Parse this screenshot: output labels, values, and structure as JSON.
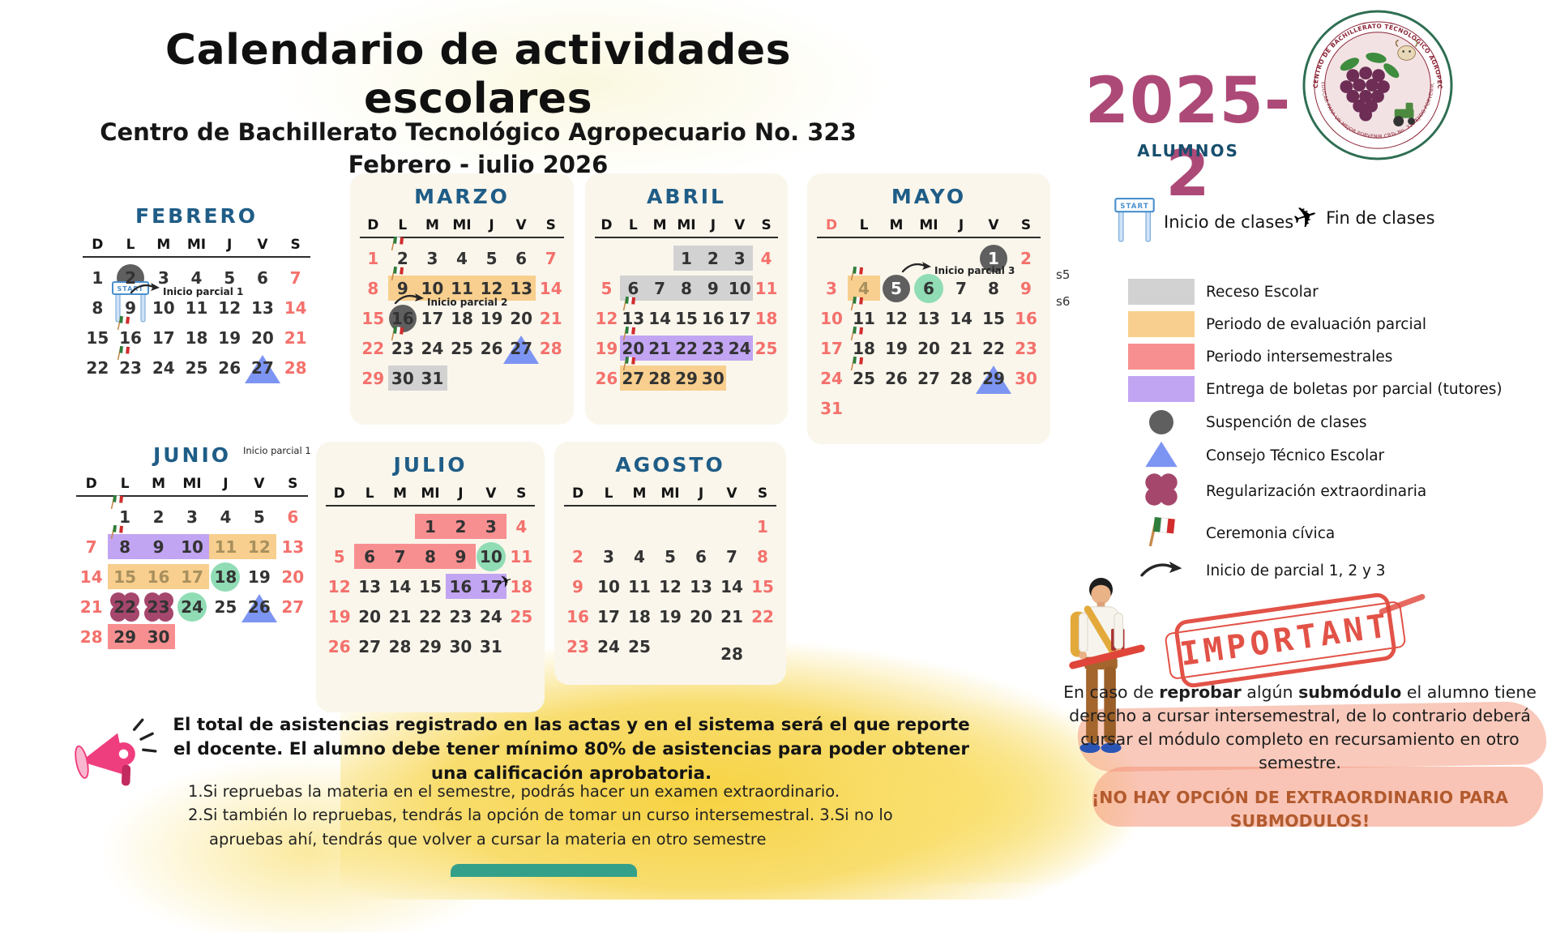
{
  "header": {
    "title": "Calendario de actividades escolares",
    "subtitle1": "Centro de Bachillerato Tecnológico Agropecuario No. 323",
    "subtitle2": "Febrero - julio 2026",
    "cycle": "2025-2",
    "audience": "ALUMNOS"
  },
  "emblem": {
    "ring_top": "CENTRO DE BACHILLERATO  TECNOLÓGICO AGROPECUARIO",
    "ring_bottom": "EDUCAR PARA UN MEJOR PORVENIR  CBTa  No. 323  EJIDO PORVENIR, B.C."
  },
  "week_labels": [
    "s5",
    "s6"
  ],
  "dow": [
    "D",
    "L",
    "M",
    "MI",
    "J",
    "V",
    "S"
  ],
  "colors": {
    "month_title": "#1f5d87",
    "weekend_red": "#f4716c",
    "receso_gray": "#d2d2d2",
    "evaluacion_orange": "#f8cf8e",
    "intersemestral_salmon": "#f78f90",
    "boletas_purple": "#c2a5f2",
    "suspension_gray": "#5f5f5f",
    "consejo_blue": "#7d95f2",
    "regularizacion_maroon": "#a5466d",
    "green_circle": "#90dcb5",
    "cycle_pink": "#ad4977",
    "stamp_red": "#e0453a",
    "warning_brown": "#b25a2e"
  },
  "months": [
    {
      "id": "feb",
      "name": "FEBRERO",
      "card": false,
      "weeks": [
        [
          {
            "d": 1
          },
          {
            "d": 2,
            "m": "susp"
          },
          {
            "d": 3
          },
          {
            "d": 4
          },
          {
            "d": 5
          },
          {
            "d": 6
          },
          {
            "d": 7,
            "r": 1
          }
        ],
        [
          {
            "d": 8
          },
          {
            "d": 9,
            "m": "start"
          },
          {
            "d": 10
          },
          {
            "d": 11
          },
          {
            "d": 12
          },
          {
            "d": 13
          },
          {
            "d": 14,
            "r": 1
          }
        ],
        [
          {
            "d": 15
          },
          {
            "d": 16,
            "f": 1
          },
          {
            "d": 17
          },
          {
            "d": 18
          },
          {
            "d": 19
          },
          {
            "d": 20
          },
          {
            "d": 21,
            "r": 1
          }
        ],
        [
          {
            "d": 22
          },
          {
            "d": 23,
            "f": 1
          },
          {
            "d": 24
          },
          {
            "d": 25
          },
          {
            "d": 26
          },
          {
            "d": 27,
            "m": "tri"
          },
          {
            "d": 28,
            "r": 1
          }
        ]
      ],
      "ann": [
        {
          "id": "feb-p1",
          "text": "Inicio parcial 1",
          "arrow": true
        }
      ]
    },
    {
      "id": "mar",
      "name": "MARZO",
      "card": true,
      "weeks": [
        [
          {
            "d": 1,
            "r": 1
          },
          {
            "d": 2,
            "f": 1
          },
          {
            "d": 3
          },
          {
            "d": 4
          },
          {
            "d": 5
          },
          {
            "d": 6
          },
          {
            "d": 7,
            "r": 1
          }
        ],
        [
          {
            "d": 8,
            "r": 1
          },
          {
            "d": 9,
            "f": 1,
            "h": "o"
          },
          {
            "d": 10,
            "h": "o"
          },
          {
            "d": 11,
            "h": "o"
          },
          {
            "d": 12,
            "h": "o"
          },
          {
            "d": 13,
            "h": "o"
          },
          {
            "d": 14,
            "r": 1
          }
        ],
        [
          {
            "d": 15,
            "r": 1
          },
          {
            "d": 16,
            "m": "susp"
          },
          {
            "d": 17
          },
          {
            "d": 18
          },
          {
            "d": 19
          },
          {
            "d": 20
          },
          {
            "d": 21,
            "r": 1
          }
        ],
        [
          {
            "d": 22,
            "r": 1
          },
          {
            "d": 23,
            "f": 1
          },
          {
            "d": 24
          },
          {
            "d": 25
          },
          {
            "d": 26
          },
          {
            "d": 27,
            "m": "tri"
          },
          {
            "d": 28,
            "r": 1
          }
        ],
        [
          {
            "d": 29,
            "r": 1
          },
          {
            "d": 30,
            "h": "g"
          },
          {
            "d": 31,
            "h": "g"
          },
          null,
          null,
          null,
          null
        ]
      ],
      "ann": [
        {
          "id": "mar-p2",
          "text": "Inicio parcial 2",
          "arrow": true
        }
      ]
    },
    {
      "id": "abr",
      "name": "ABRIL",
      "card": true,
      "weeks": [
        [
          null,
          null,
          null,
          {
            "d": 1,
            "h": "g"
          },
          {
            "d": 2,
            "h": "g"
          },
          {
            "d": 3,
            "h": "g"
          },
          {
            "d": 4,
            "r": 1
          }
        ],
        [
          {
            "d": 5,
            "r": 1
          },
          {
            "d": 6,
            "h": "g"
          },
          {
            "d": 7,
            "h": "g"
          },
          {
            "d": 8,
            "h": "g"
          },
          {
            "d": 9,
            "h": "g"
          },
          {
            "d": 10,
            "h": "g"
          },
          {
            "d": 11,
            "r": 1
          }
        ],
        [
          {
            "d": 12,
            "r": 1
          },
          {
            "d": 13,
            "f": 1
          },
          {
            "d": 14
          },
          {
            "d": 15
          },
          {
            "d": 16
          },
          {
            "d": 17
          },
          {
            "d": 18,
            "r": 1
          }
        ],
        [
          {
            "d": 19,
            "r": 1
          },
          {
            "d": 20,
            "f": 1,
            "h": "p"
          },
          {
            "d": 21,
            "h": "p"
          },
          {
            "d": 22,
            "h": "p"
          },
          {
            "d": 23,
            "h": "p"
          },
          {
            "d": 24,
            "h": "p"
          },
          {
            "d": 25,
            "r": 1
          }
        ],
        [
          {
            "d": 26,
            "r": 1
          },
          {
            "d": 27,
            "f": 1,
            "h": "o"
          },
          {
            "d": 28,
            "h": "o"
          },
          {
            "d": 29,
            "h": "o"
          },
          {
            "d": 30,
            "h": "o"
          },
          null,
          null
        ]
      ]
    },
    {
      "id": "may",
      "name": "MAYO",
      "card": true,
      "d_red": true,
      "weeks": [
        [
          null,
          null,
          null,
          null,
          null,
          {
            "d": 1,
            "m": "susp",
            "w": 1
          },
          {
            "d": 2,
            "r": 1
          }
        ],
        [
          {
            "d": 3,
            "r": 1
          },
          {
            "d": 4,
            "f": 1,
            "h": "o",
            "dim": 1
          },
          {
            "d": 5,
            "m": "susp",
            "w": 1
          },
          {
            "d": 6,
            "m": "green"
          },
          {
            "d": 7
          },
          {
            "d": 8
          },
          {
            "d": 9,
            "r": 1
          }
        ],
        [
          {
            "d": 10,
            "r": 1
          },
          {
            "d": 11,
            "f": 1
          },
          {
            "d": 12
          },
          {
            "d": 13
          },
          {
            "d": 14
          },
          {
            "d": 15
          },
          {
            "d": 16,
            "r": 1
          }
        ],
        [
          {
            "d": 17,
            "r": 1
          },
          {
            "d": 18,
            "f": 1
          },
          {
            "d": 19
          },
          {
            "d": 20
          },
          {
            "d": 21
          },
          {
            "d": 22
          },
          {
            "d": 23,
            "r": 1
          }
        ],
        [
          {
            "d": 24,
            "r": 1
          },
          {
            "d": 25,
            "f": 1
          },
          {
            "d": 26
          },
          {
            "d": 27
          },
          {
            "d": 28
          },
          {
            "d": 29,
            "m": "tri"
          },
          {
            "d": 30,
            "r": 1
          }
        ],
        [
          {
            "d": 31,
            "r": 1
          },
          null,
          null,
          null,
          null,
          null,
          null
        ]
      ],
      "ann": [
        {
          "id": "may-p3",
          "text": "Inicio parcial 3",
          "arrow": true
        }
      ]
    },
    {
      "id": "jun",
      "name": "JUNIO",
      "card": false,
      "weeks": [
        [
          null,
          {
            "d": 1,
            "f": 1
          },
          {
            "d": 2
          },
          {
            "d": 3
          },
          {
            "d": 4
          },
          {
            "d": 5
          },
          {
            "d": 6,
            "r": 1
          }
        ],
        [
          {
            "d": 7,
            "r": 1
          },
          {
            "d": 8,
            "f": 1,
            "h": "p"
          },
          {
            "d": 9,
            "h": "p"
          },
          {
            "d": 10,
            "h": "p"
          },
          {
            "d": 11,
            "h": "o",
            "dim": 1
          },
          {
            "d": 12,
            "h": "o",
            "dim": 1
          },
          {
            "d": 13,
            "r": 1
          }
        ],
        [
          {
            "d": 14,
            "r": 1
          },
          {
            "d": 15,
            "h": "o",
            "dim": 1
          },
          {
            "d": 16,
            "h": "o",
            "dim": 1
          },
          {
            "d": 17,
            "h": "o",
            "dim": 1
          },
          {
            "d": 18,
            "m": "green"
          },
          {
            "d": 19
          },
          {
            "d": 20,
            "r": 1
          }
        ],
        [
          {
            "d": 21,
            "r": 1
          },
          {
            "d": 22,
            "m": "quat"
          },
          {
            "d": 23,
            "m": "quat"
          },
          {
            "d": 24,
            "m": "green"
          },
          {
            "d": 25
          },
          {
            "d": 26,
            "m": "tri"
          },
          {
            "d": 27,
            "r": 1
          }
        ],
        [
          {
            "d": 28,
            "r": 1
          },
          {
            "d": 29,
            "h": "s"
          },
          {
            "d": 30,
            "h": "s"
          },
          null,
          null,
          null,
          null
        ]
      ],
      "ann": [
        {
          "id": "jun-p1",
          "text": "Inicio parcial 1"
        }
      ]
    },
    {
      "id": "jul",
      "name": "JULIO",
      "card": true,
      "weeks": [
        [
          null,
          null,
          null,
          {
            "d": 1,
            "h": "s"
          },
          {
            "d": 2,
            "h": "s"
          },
          {
            "d": 3,
            "h": "s"
          },
          {
            "d": 4,
            "r": 1
          }
        ],
        [
          {
            "d": 5,
            "r": 1
          },
          {
            "d": 6,
            "h": "s"
          },
          {
            "d": 7,
            "h": "s"
          },
          {
            "d": 8,
            "h": "s"
          },
          {
            "d": 9,
            "h": "s"
          },
          {
            "d": 10,
            "m": "green"
          },
          {
            "d": 11,
            "r": 1
          }
        ],
        [
          {
            "d": 12,
            "r": 1
          },
          {
            "d": 13
          },
          {
            "d": 14
          },
          {
            "d": 15
          },
          {
            "d": 16,
            "h": "p"
          },
          {
            "d": 17,
            "h": "p",
            "pl": 1
          },
          {
            "d": 18,
            "r": 1
          }
        ],
        [
          {
            "d": 19,
            "r": 1
          },
          {
            "d": 20
          },
          {
            "d": 21
          },
          {
            "d": 22
          },
          {
            "d": 23
          },
          {
            "d": 24
          },
          {
            "d": 25,
            "r": 1
          }
        ],
        [
          {
            "d": 26,
            "r": 1
          },
          {
            "d": 27
          },
          {
            "d": 28
          },
          {
            "d": 29
          },
          {
            "d": 30
          },
          {
            "d": 31
          },
          null
        ]
      ]
    },
    {
      "id": "ago",
      "name": "AGOSTO",
      "card": true,
      "weeks": [
        [
          null,
          null,
          null,
          null,
          null,
          null,
          {
            "d": 1,
            "r": 1
          }
        ],
        [
          {
            "d": 2,
            "r": 1
          },
          {
            "d": 3
          },
          {
            "d": 4
          },
          {
            "d": 5
          },
          {
            "d": 6
          },
          {
            "d": 7
          },
          {
            "d": 8,
            "r": 1
          }
        ],
        [
          {
            "d": 9,
            "r": 1
          },
          {
            "d": 10
          },
          {
            "d": 11
          },
          {
            "d": 12
          },
          {
            "d": 13
          },
          {
            "d": 14
          },
          {
            "d": 15,
            "r": 1
          }
        ],
        [
          {
            "d": 16,
            "r": 1
          },
          {
            "d": 17
          },
          {
            "d": 18
          },
          {
            "d": 19
          },
          {
            "d": 20
          },
          {
            "d": 21
          },
          {
            "d": 22,
            "r": 1
          }
        ],
        [
          {
            "d": 23,
            "r": 1
          },
          {
            "d": 24
          },
          {
            "d": 25
          },
          null,
          null,
          {
            "d": 28,
            "off": 1
          },
          null
        ]
      ]
    }
  ],
  "legend": {
    "inicio_label": "Inicio de clases",
    "fin_label": "Fin de clases",
    "items": [
      {
        "type": "swatch",
        "color": "#d2d2d2",
        "label": "Receso Escolar"
      },
      {
        "type": "swatch",
        "color": "#f8cf8e",
        "label": "Periodo de evaluación parcial"
      },
      {
        "type": "swatch",
        "color": "#f78f90",
        "label": "Periodo intersemestrales"
      },
      {
        "type": "swatch",
        "color": "#c2a5f2",
        "label": "Entrega de boletas por parcial (tutores)"
      },
      {
        "type": "circle",
        "color": "#5f5f5f",
        "label": "Suspención de clases"
      },
      {
        "type": "triangle",
        "color": "#7d95f2",
        "label": "Consejo Técnico Escolar"
      },
      {
        "type": "quatrefoil",
        "color": "#a5466d",
        "label": "Regularización extraordinaria"
      },
      {
        "type": "flag",
        "label": "Ceremonia cívica"
      },
      {
        "type": "arrow",
        "label": "Inicio de parcial 1, 2 y 3"
      }
    ]
  },
  "stamp": {
    "text": "IMPORTANT"
  },
  "notes_left": {
    "bold": "El total de asistencias registrado en las actas y en el sistema será el que reporte el docente.  El alumno debe tener mínimo 80% de asistencias para poder obtener una calificación aprobatoria.",
    "items": [
      "1.Si repruebas la materia en el semestre, podrás hacer un examen extraordinario.",
      "2.Si también lo repruebas, tendrás la opción de tomar un curso intersemestral. 3.Si no lo apruebas ahí, tendrás que volver a cursar la materia en otro semestre"
    ]
  },
  "notes_right": {
    "p1_parts": [
      "En caso de ",
      "reprobar",
      " algún ",
      "submódulo",
      " el alumno tiene derecho a cursar intersemestral, de lo contrario deberá cursar el módulo completo en recursamiento en otro semestre."
    ],
    "warning": "¡NO HAY OPCIÓN DE EXTRAORDINARIO PARA SUBMODULOS!"
  }
}
